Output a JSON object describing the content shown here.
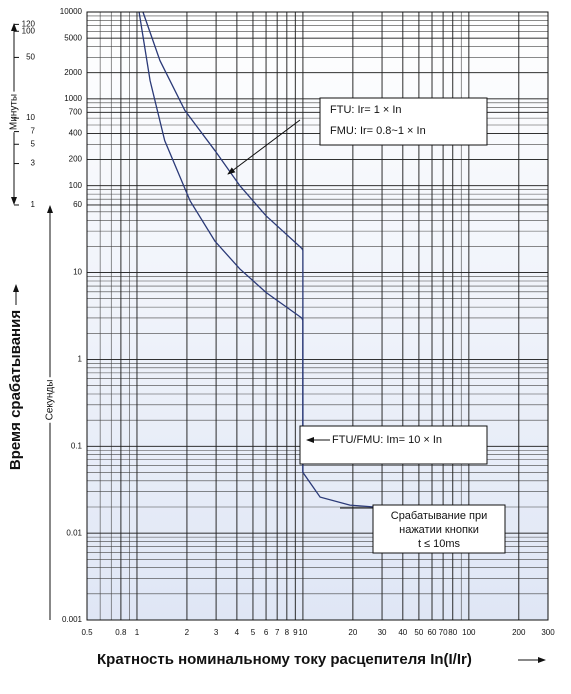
{
  "chart_data": {
    "type": "line",
    "xscale": "log",
    "yscale": "log",
    "grid": true,
    "xlabel": "Кратность номинальному току расцепителя In(I/Ir)",
    "ylabel": "Время срабатывания",
    "y1label": "Секунды",
    "y2label": "Минуты",
    "xlim": [
      0.5,
      300
    ],
    "ylim": [
      0.001,
      10000
    ],
    "xticks": [
      0.5,
      0.8,
      1,
      2,
      3,
      4,
      5,
      6,
      7,
      8,
      9,
      10,
      20,
      30,
      40,
      50,
      60,
      70,
      80,
      100,
      200,
      300
    ],
    "yticks": [
      0.001,
      0.01,
      0.1,
      1,
      10,
      60,
      100,
      200,
      400,
      700,
      1000,
      2000,
      5000,
      10000
    ],
    "y2ticks": [
      1,
      3,
      5,
      7,
      10,
      50,
      100,
      120
    ],
    "series": [
      {
        "color": "#2b3a78",
        "x": [
          1.087,
          1.376,
          1.946,
          2.95,
          4.17,
          6.0,
          9.85,
          10,
          10,
          12.7,
          19.2,
          27
        ],
        "values": [
          10000,
          2760,
          733,
          254,
          100,
          45,
          19,
          18,
          0.05,
          0.026,
          0.021,
          0.02
        ]
      },
      {
        "color": "#2b3a78",
        "x": [
          1.03,
          1.2,
          1.47,
          2.09,
          2.95,
          4.17,
          6.0,
          9.85,
          10,
          10
        ],
        "values": [
          10000,
          1620,
          330,
          67,
          23,
          11,
          5.9,
          3.0,
          2.8,
          0.05
        ]
      }
    ],
    "annotations": [
      "FTU: Ir= 1 × In",
      "FMU: Ir= 0.8~1 × In",
      "FTU/FMU: Im= 10 × In",
      "Срабатывание при",
      "нажатии кнопки",
      "t ≤ 10ms"
    ]
  }
}
